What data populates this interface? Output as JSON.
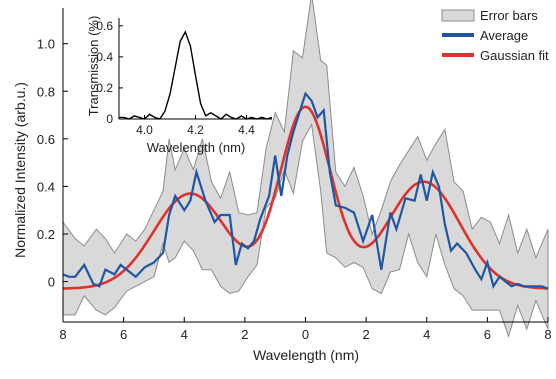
{
  "chart_data": [
    {
      "type": "line",
      "xlabel": "Wavelength (nm)",
      "ylabel": "Normalized Intensity (arb.u.)",
      "xlim": [
        -8,
        8
      ],
      "ylim": [
        -0.17,
        1.15
      ],
      "x_ticks": [
        -8,
        -6,
        -4,
        -2,
        0,
        2,
        4,
        6,
        8
      ],
      "x_tick_labels": [
        "8",
        "6",
        "4",
        "2",
        "0",
        "2",
        "4",
        "6",
        "8"
      ],
      "y_ticks": [
        0,
        0.2,
        0.4,
        0.6,
        0.8,
        1.0
      ],
      "y_tick_labels": [
        "0",
        "0.2",
        "0.4",
        "0.6",
        "0.8",
        "1.0"
      ],
      "grid": false,
      "legend_position": "top-right",
      "series": [
        {
          "name": "Error bars",
          "type": "area",
          "color": "#d9d9d9",
          "x": [
            -8.0,
            -7.6,
            -7.3,
            -6.9,
            -6.6,
            -6.3,
            -5.9,
            -5.6,
            -5.3,
            -5.0,
            -4.7,
            -4.5,
            -4.3,
            -4.0,
            -3.7,
            -3.4,
            -3.1,
            -2.8,
            -2.5,
            -2.2,
            -1.9,
            -1.6,
            -1.3,
            -1.0,
            -0.7,
            -0.4,
            -0.1,
            0.2,
            0.5,
            0.7,
            1.0,
            1.3,
            1.6,
            1.9,
            2.2,
            2.5,
            2.8,
            3.1,
            3.4,
            3.7,
            4.0,
            4.3,
            4.6,
            4.9,
            5.2,
            5.5,
            5.8,
            6.1,
            6.4,
            6.7,
            7.0,
            7.3,
            7.6,
            8.0
          ],
          "upper": [
            0.25,
            0.18,
            0.15,
            0.22,
            0.18,
            0.12,
            0.2,
            0.17,
            0.22,
            0.3,
            0.38,
            0.6,
            0.47,
            0.56,
            0.47,
            0.6,
            0.42,
            0.35,
            0.46,
            0.29,
            0.28,
            0.29,
            0.56,
            0.71,
            0.63,
            0.97,
            0.94,
            1.21,
            0.93,
            0.91,
            0.46,
            0.4,
            0.48,
            0.36,
            0.2,
            0.3,
            0.42,
            0.49,
            0.55,
            0.61,
            0.51,
            0.58,
            0.64,
            0.42,
            0.38,
            0.22,
            0.27,
            0.25,
            0.16,
            0.28,
            0.12,
            0.22,
            0.1,
            0.22
          ],
          "lower": [
            -0.14,
            -0.14,
            -0.06,
            -0.12,
            -0.14,
            -0.11,
            -0.04,
            -0.02,
            0.0,
            0.02,
            0.16,
            0.08,
            0.1,
            0.17,
            0.13,
            0.05,
            0.05,
            -0.02,
            -0.05,
            -0.04,
            0.02,
            0.07,
            0.31,
            0.35,
            0.47,
            0.37,
            0.59,
            0.66,
            0.38,
            0.12,
            0.1,
            0.06,
            0.08,
            0.06,
            -0.03,
            -0.05,
            0.04,
            0.05,
            0.2,
            0.08,
            0.02,
            0.2,
            0.07,
            -0.03,
            -0.06,
            -0.12,
            -0.12,
            -0.12,
            -0.12,
            -0.23,
            -0.1,
            -0.2,
            -0.08,
            -0.2
          ]
        },
        {
          "name": "Average",
          "color": "#2057a4",
          "x": [
            -8.0,
            -7.8,
            -7.6,
            -7.3,
            -7.0,
            -6.8,
            -6.6,
            -6.3,
            -6.1,
            -5.9,
            -5.6,
            -5.3,
            -5.0,
            -4.7,
            -4.5,
            -4.3,
            -4.0,
            -3.8,
            -3.6,
            -3.3,
            -3.0,
            -2.8,
            -2.5,
            -2.3,
            -2.1,
            -1.9,
            -1.7,
            -1.5,
            -1.2,
            -1.0,
            -0.8,
            -0.6,
            -0.4,
            -0.2,
            0.0,
            0.2,
            0.4,
            0.6,
            0.8,
            1.0,
            1.3,
            1.6,
            1.9,
            2.2,
            2.5,
            2.8,
            3.0,
            3.3,
            3.6,
            3.8,
            4.0,
            4.2,
            4.4,
            4.6,
            4.8,
            5.0,
            5.3,
            5.6,
            5.8,
            6.0,
            6.2,
            6.4,
            6.6,
            6.8,
            7.0,
            7.2,
            7.4,
            7.6,
            7.8,
            8.0
          ],
          "y": [
            0.03,
            0.02,
            0.02,
            0.07,
            -0.01,
            -0.02,
            0.05,
            0.03,
            0.07,
            0.05,
            0.02,
            0.06,
            0.08,
            0.12,
            0.28,
            0.36,
            0.3,
            0.34,
            0.46,
            0.34,
            0.25,
            0.28,
            0.28,
            0.07,
            0.16,
            0.14,
            0.17,
            0.26,
            0.36,
            0.53,
            0.36,
            0.53,
            0.63,
            0.71,
            0.79,
            0.76,
            0.69,
            0.72,
            0.46,
            0.32,
            0.31,
            0.29,
            0.17,
            0.28,
            0.05,
            0.29,
            0.22,
            0.35,
            0.34,
            0.45,
            0.34,
            0.46,
            0.4,
            0.24,
            0.13,
            0.16,
            0.12,
            0.05,
            0.01,
            0.08,
            -0.02,
            0.02,
            0.0,
            -0.02,
            -0.01,
            -0.02,
            -0.02,
            -0.02,
            -0.02,
            -0.03
          ]
        },
        {
          "name": "Gaussian fit",
          "color": "#e0322d",
          "function": "multi_gaussian",
          "baseline": -0.03,
          "peaks": [
            {
              "center": -3.8,
              "amplitude": 0.4,
              "sigma": 1.2
            },
            {
              "center": 0.0,
              "amplitude": 0.76,
              "sigma": 0.85
            },
            {
              "center": 3.9,
              "amplitude": 0.45,
              "sigma": 1.2
            }
          ]
        }
      ]
    },
    {
      "type": "line",
      "role": "inset",
      "xlabel": "Wavelength (nm)",
      "ylabel": "Transmission (%)",
      "xlim": [
        3.9,
        4.5
      ],
      "ylim": [
        0,
        0.65
      ],
      "x_ticks": [
        4.0,
        4.2,
        4.4
      ],
      "x_tick_labels": [
        "4.0",
        "4.2",
        "4.4"
      ],
      "y_ticks": [
        0,
        0.2,
        0.4,
        0.6
      ],
      "y_tick_labels": [
        "0",
        "0.2",
        "0.4",
        "0.6"
      ],
      "series": [
        {
          "color": "#000000",
          "x": [
            3.9,
            3.92,
            3.94,
            3.96,
            3.98,
            4.0,
            4.02,
            4.04,
            4.06,
            4.08,
            4.1,
            4.12,
            4.14,
            4.16,
            4.18,
            4.2,
            4.22,
            4.24,
            4.26,
            4.28,
            4.3,
            4.32,
            4.34,
            4.36,
            4.38,
            4.4,
            4.42,
            4.44,
            4.46,
            4.48,
            4.5
          ],
          "y": [
            0.01,
            0.01,
            0.0,
            0.02,
            0.01,
            0.0,
            0.03,
            0.01,
            0.0,
            0.05,
            0.16,
            0.33,
            0.5,
            0.56,
            0.47,
            0.28,
            0.1,
            0.02,
            0.04,
            0.02,
            0.0,
            0.03,
            0.01,
            0.0,
            0.02,
            0.0,
            0.01,
            0.0,
            0.01,
            0.0,
            0.01
          ]
        }
      ]
    }
  ]
}
